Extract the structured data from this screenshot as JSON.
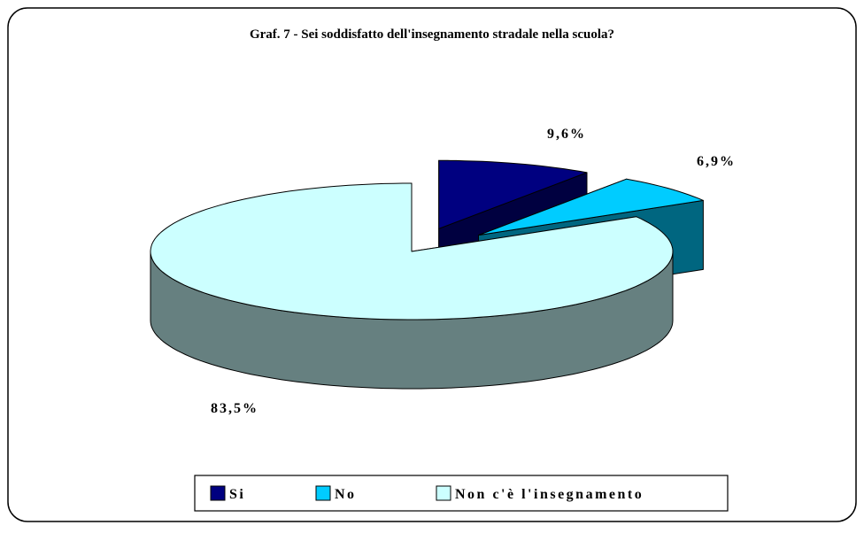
{
  "chart_data": {
    "type": "pie",
    "title": "Graf. 7 - Sei soddisfatto dell'insegnamento stradale nella scuola?",
    "categories": [
      "Si",
      "No",
      "Non c'è l'insegnamento"
    ],
    "values": [
      9.6,
      6.9,
      83.5
    ],
    "value_labels": [
      "9,6%",
      "6,9%",
      "83,5%"
    ],
    "colors": [
      "#000080",
      "#00ccff",
      "#ccffff"
    ],
    "side_colors": [
      "#000040",
      "#006680",
      "#668080"
    ],
    "legend": "bottom"
  }
}
